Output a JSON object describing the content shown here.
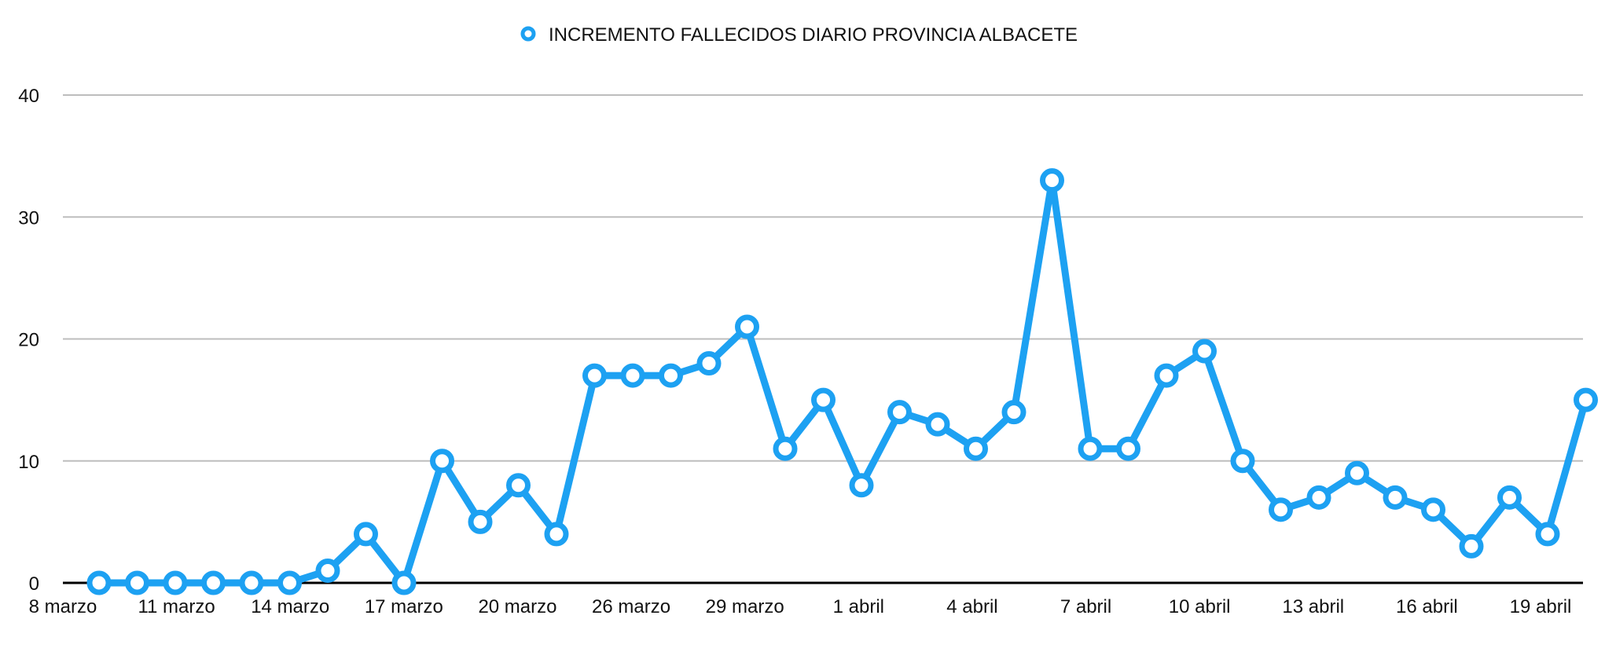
{
  "chart_data": {
    "type": "line",
    "legend_position": "top-center",
    "grid": true,
    "colors": {
      "series": "#1da1f2",
      "grid": "#bdbdbd",
      "axis": "#000000"
    },
    "ylim": [
      0,
      40
    ],
    "y_ticks": [
      0,
      10,
      20,
      30,
      40
    ],
    "x_tick_labels": [
      "8 marzo",
      "11 marzo",
      "14 marzo",
      "17 marzo",
      "20 marzo",
      "26 marzo",
      "29 marzo",
      "1 abril",
      "4 abril",
      "7 abril",
      "10 abril",
      "13 abril",
      "16 abril",
      "19 abril"
    ],
    "series": [
      {
        "name": "INCREMENTO FALLECIDOS DIARIO PROVINCIA ALBACETE",
        "values": [
          0,
          0,
          0,
          0,
          0,
          0,
          1,
          4,
          0,
          10,
          5,
          8,
          4,
          17,
          17,
          17,
          18,
          21,
          11,
          15,
          8,
          14,
          13,
          11,
          14,
          33,
          11,
          11,
          17,
          19,
          10,
          6,
          7,
          9,
          7,
          6,
          3,
          7,
          4,
          15
        ]
      }
    ]
  }
}
